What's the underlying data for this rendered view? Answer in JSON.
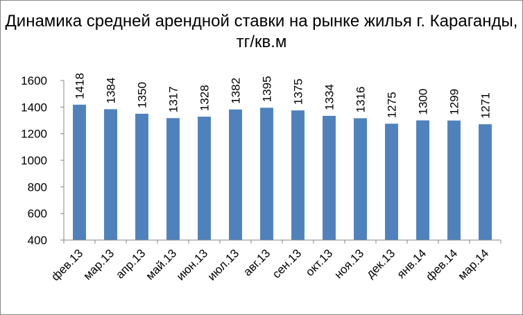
{
  "chart_data": {
    "type": "bar",
    "title": "Динамика средней арендной ставки на рынке жилья г. Караганды, тг/кв.м",
    "categories": [
      "фев.13",
      "мар.13",
      "апр.13",
      "май.13",
      "июн.13",
      "июл.13",
      "авг.13",
      "сен.13",
      "окт.13",
      "ноя.13",
      "дек.13",
      "янв.14",
      "фев.14",
      "мар.14"
    ],
    "values": [
      1418,
      1384,
      1350,
      1317,
      1328,
      1382,
      1395,
      1375,
      1334,
      1316,
      1275,
      1300,
      1299,
      1271
    ],
    "data_labels": [
      "1418",
      "1384",
      "1350",
      "1317",
      "1328",
      "1382",
      "1395",
      "1375",
      "1334",
      "1316",
      "1275",
      "1300",
      "1299",
      "1271"
    ],
    "yticks": [
      "400",
      "600",
      "800",
      "1000",
      "1200",
      "1400",
      "1600"
    ],
    "ylim": [
      400,
      1600
    ],
    "bar_color": "#4F81BD",
    "grid": false,
    "legend": "none"
  }
}
